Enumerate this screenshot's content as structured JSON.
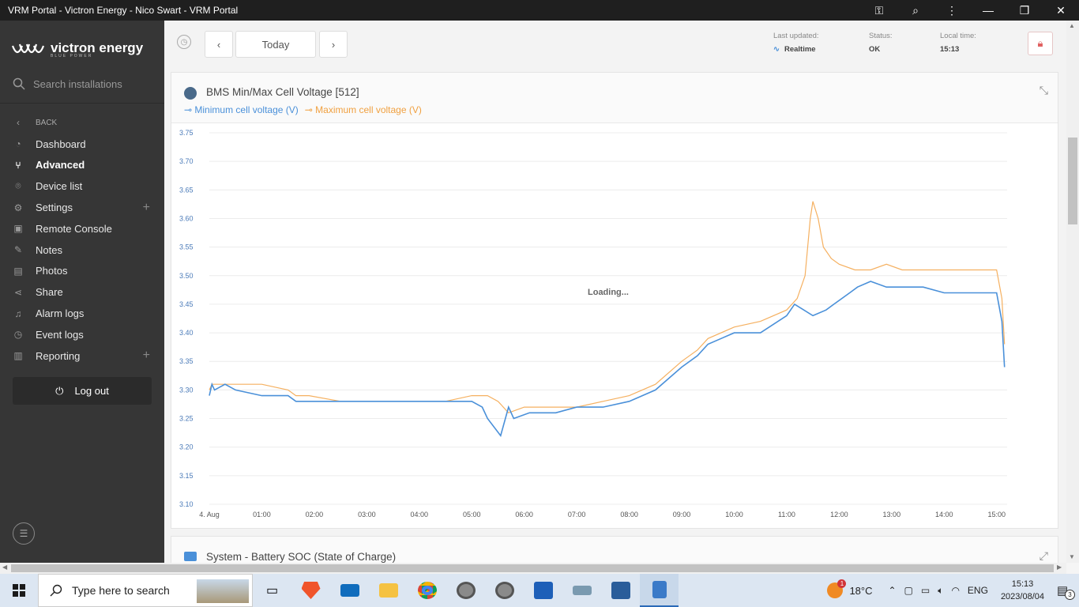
{
  "window": {
    "title": "VRM Portal - Victron Energy - Nico Swart - VRM Portal"
  },
  "sidebar": {
    "brand": "victron energy",
    "tagline": "BLUE POWER",
    "search_placeholder": "Search installations",
    "back_label": "BACK",
    "items": [
      {
        "label": "Dashboard"
      },
      {
        "label": "Advanced"
      },
      {
        "label": "Device list"
      },
      {
        "label": "Settings"
      },
      {
        "label": "Remote Console"
      },
      {
        "label": "Notes"
      },
      {
        "label": "Photos"
      },
      {
        "label": "Share"
      },
      {
        "label": "Alarm logs"
      },
      {
        "label": "Event logs"
      },
      {
        "label": "Reporting"
      }
    ],
    "logout_label": "Log out"
  },
  "topbar": {
    "today_label": "Today",
    "last_updated_label": "Last updated:",
    "last_updated_value": "Realtime",
    "status_label": "Status:",
    "status_value": "OK",
    "local_time_label": "Local time:",
    "local_time_value": "15:13"
  },
  "widget1": {
    "title": "BMS Min/Max Cell Voltage [512]",
    "legend_min": "Minimum cell voltage (V)",
    "legend_max": "Maximum cell voltage (V)",
    "loading": "Loading..."
  },
  "widget2": {
    "title": "System - Battery SOC (State of Charge)"
  },
  "taskbar": {
    "search_placeholder": "Type here to search",
    "weather": "18°C",
    "language": "ENG",
    "time": "15:13",
    "date": "2023/08/04",
    "notification_count": "3",
    "weather_badge": "1"
  },
  "colors": {
    "min_series": "#4a90d9",
    "max_series": "#f5b060"
  },
  "chart_data": {
    "type": "line",
    "title": "BMS Min/Max Cell Voltage [512]",
    "xlabel": "",
    "ylabel": "",
    "ylim": [
      3.1,
      3.75
    ],
    "yticks": [
      "3.75",
      "3.70",
      "3.65",
      "3.60",
      "3.55",
      "3.50",
      "3.45",
      "3.40",
      "3.35",
      "3.30",
      "3.25",
      "3.20",
      "3.15",
      "3.10"
    ],
    "xticks": [
      "4. Aug",
      "01:00",
      "02:00",
      "03:00",
      "04:00",
      "05:00",
      "06:00",
      "07:00",
      "08:00",
      "09:00",
      "10:00",
      "11:00",
      "12:00",
      "13:00",
      "14:00",
      "15:00"
    ],
    "grid": true,
    "legend": "top-left",
    "series": [
      {
        "name": "Minimum cell voltage (V)",
        "x": [
          0,
          0.05,
          0.1,
          0.3,
          0.5,
          1.0,
          1.5,
          1.65,
          1.9,
          2.5,
          2.75,
          3.0,
          3.5,
          4.0,
          4.5,
          5.0,
          5.2,
          5.3,
          5.55,
          5.7,
          5.8,
          6.1,
          6.3,
          6.6,
          7.0,
          7.5,
          8.0,
          8.5,
          9.0,
          9.3,
          9.5,
          9.75,
          10.0,
          10.5,
          11.0,
          11.15,
          11.5,
          11.75,
          11.9,
          12.2,
          12.35,
          12.6,
          12.9,
          13.2,
          13.6,
          14.0,
          14.5,
          15.0,
          15.1,
          15.15
        ],
        "values": [
          3.29,
          3.31,
          3.3,
          3.31,
          3.3,
          3.29,
          3.29,
          3.28,
          3.28,
          3.28,
          3.28,
          3.28,
          3.28,
          3.28,
          3.28,
          3.28,
          3.27,
          3.25,
          3.22,
          3.27,
          3.25,
          3.26,
          3.26,
          3.26,
          3.27,
          3.27,
          3.28,
          3.3,
          3.34,
          3.36,
          3.38,
          3.39,
          3.4,
          3.4,
          3.43,
          3.45,
          3.43,
          3.44,
          3.45,
          3.47,
          3.48,
          3.49,
          3.48,
          3.48,
          3.48,
          3.47,
          3.47,
          3.47,
          3.42,
          3.34
        ]
      },
      {
        "name": "Maximum cell voltage (V)",
        "x": [
          0,
          0.05,
          0.1,
          0.3,
          0.5,
          1.0,
          1.5,
          1.65,
          1.9,
          2.5,
          3.0,
          3.5,
          4.0,
          4.5,
          5.0,
          5.3,
          5.5,
          5.7,
          6.0,
          6.3,
          6.6,
          7.0,
          7.5,
          8.0,
          8.5,
          9.0,
          9.3,
          9.5,
          9.75,
          10.0,
          10.5,
          11.0,
          11.2,
          11.35,
          11.45,
          11.5,
          11.6,
          11.7,
          11.85,
          12.0,
          12.3,
          12.6,
          12.9,
          13.2,
          13.6,
          14.0,
          14.5,
          15.0,
          15.1,
          15.15
        ],
        "values": [
          3.3,
          3.31,
          3.31,
          3.31,
          3.31,
          3.31,
          3.3,
          3.29,
          3.29,
          3.28,
          3.28,
          3.28,
          3.28,
          3.28,
          3.29,
          3.29,
          3.28,
          3.26,
          3.27,
          3.27,
          3.27,
          3.27,
          3.28,
          3.29,
          3.31,
          3.35,
          3.37,
          3.39,
          3.4,
          3.41,
          3.42,
          3.44,
          3.46,
          3.5,
          3.6,
          3.63,
          3.6,
          3.55,
          3.53,
          3.52,
          3.51,
          3.51,
          3.52,
          3.51,
          3.51,
          3.51,
          3.51,
          3.51,
          3.46,
          3.38
        ]
      }
    ]
  }
}
